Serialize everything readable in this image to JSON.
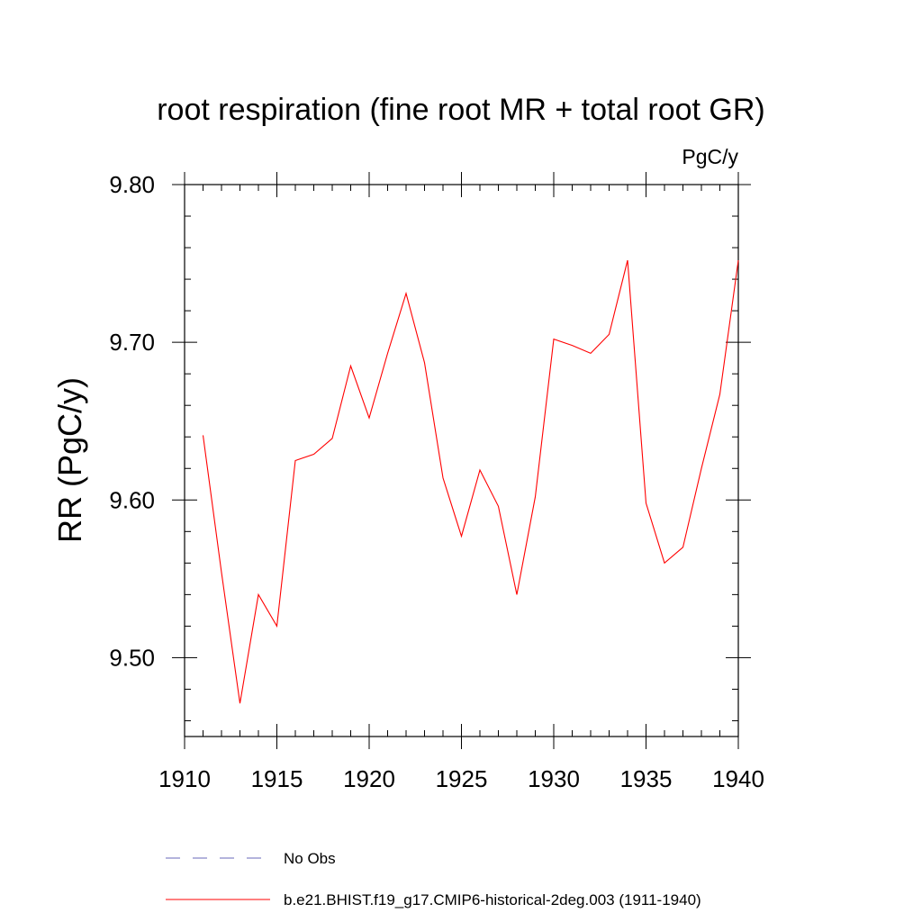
{
  "chart_data": {
    "type": "line",
    "title": "root respiration (fine root MR + total root GR)",
    "units": "PgC/y",
    "xlabel": "",
    "ylabel": "RR  (PgC/y)",
    "xlim": [
      1910,
      1940
    ],
    "ylim": [
      9.45,
      9.8
    ],
    "xticks": [
      "1910",
      "1915",
      "1920",
      "1925",
      "1930",
      "1935",
      "1940"
    ],
    "yticks": [
      "9.80",
      "9.70",
      "9.60",
      "9.50"
    ],
    "grid": false,
    "legend_position": "bottom",
    "series": [
      {
        "name": "b.e21.BHIST.f19_g17.CMIP6-historical-2deg.003 (1911-1940)",
        "color": "#ff0000",
        "style": "solid",
        "x": [
          1911,
          1912,
          1913,
          1914,
          1915,
          1916,
          1917,
          1918,
          1919,
          1920,
          1921,
          1922,
          1923,
          1924,
          1925,
          1926,
          1927,
          1928,
          1929,
          1930,
          1931,
          1932,
          1933,
          1934,
          1935,
          1936,
          1937,
          1938,
          1939,
          1940
        ],
        "y": [
          9.641,
          9.554,
          9.471,
          9.54,
          9.52,
          9.625,
          9.629,
          9.639,
          9.685,
          9.652,
          9.693,
          9.731,
          9.687,
          9.614,
          9.577,
          9.619,
          9.596,
          9.54,
          9.602,
          9.702,
          9.698,
          9.693,
          9.705,
          9.752,
          9.598,
          9.56,
          9.57,
          9.62,
          9.667,
          9.752
        ]
      }
    ],
    "legend": [
      {
        "label": "No Obs",
        "color": "#6a6ab8",
        "style": "dashed"
      },
      {
        "label": "b.e21.BHIST.f19_g17.CMIP6-historical-2deg.003 (1911-1940)",
        "color": "#ff0000",
        "style": "solid"
      }
    ]
  }
}
